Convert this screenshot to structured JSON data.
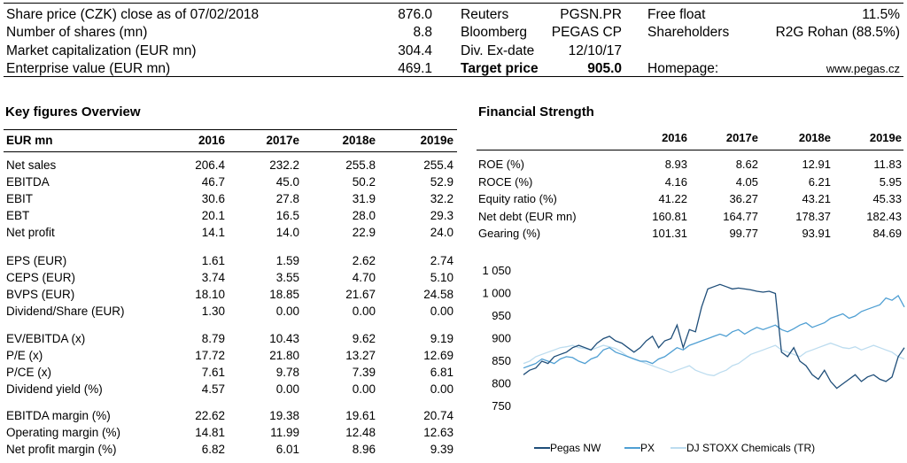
{
  "header": {
    "share_price_label": "Share price (CZK) close as of 07/02/2018",
    "share_price_value": "876.0",
    "shares_label": "Number of shares (mn)",
    "shares_value": "8.8",
    "market_cap_label": "Market capitalization (EUR mn)",
    "market_cap_value": "304.4",
    "ev_label": "Enterprise value (EUR mn)",
    "ev_value": "469.1",
    "reuters_label": "Reuters",
    "reuters_value": "PGSN.PR",
    "bloomberg_label": "Bloomberg",
    "bloomberg_value": "PEGAS CP",
    "divex_label": "Div. Ex-date",
    "divex_value": "12/10/17",
    "target_label": "Target price",
    "target_value": "905.0",
    "freefloat_label": "Free float",
    "freefloat_value": "11.5%",
    "shareholders_label": "Shareholders",
    "shareholders_value": "R2G Rohan (88.5%)",
    "homepage_label": "Homepage:",
    "homepage_value": "www.pegas.cz"
  },
  "key_figures": {
    "title": "Key figures Overview",
    "unit_label": "EUR mn",
    "years": [
      "2016",
      "2017e",
      "2018e",
      "2019e"
    ],
    "rows": [
      {
        "label": "Net sales",
        "v": [
          "206.4",
          "232.2",
          "255.8",
          "255.4"
        ]
      },
      {
        "label": "EBITDA",
        "v": [
          "46.7",
          "45.0",
          "50.2",
          "52.9"
        ]
      },
      {
        "label": "EBIT",
        "v": [
          "30.6",
          "27.8",
          "31.9",
          "32.2"
        ]
      },
      {
        "label": "EBT",
        "v": [
          "20.1",
          "16.5",
          "28.0",
          "29.3"
        ]
      },
      {
        "label": "Net profit",
        "v": [
          "14.1",
          "14.0",
          "22.9",
          "24.0"
        ]
      },
      {
        "label": "EPS (EUR)",
        "v": [
          "1.61",
          "1.59",
          "2.62",
          "2.74"
        ]
      },
      {
        "label": "CEPS (EUR)",
        "v": [
          "3.74",
          "3.55",
          "4.70",
          "5.10"
        ]
      },
      {
        "label": "BVPS (EUR)",
        "v": [
          "18.10",
          "18.85",
          "21.67",
          "24.58"
        ]
      },
      {
        "label": "Dividend/Share (EUR)",
        "v": [
          "1.30",
          "0.00",
          "0.00",
          "0.00"
        ]
      },
      {
        "label": "EV/EBITDA (x)",
        "v": [
          "8.79",
          "10.43",
          "9.62",
          "9.19"
        ]
      },
      {
        "label": "P/E (x)",
        "v": [
          "17.72",
          "21.80",
          "13.27",
          "12.69"
        ]
      },
      {
        "label": "P/CE (x)",
        "v": [
          "7.61",
          "9.78",
          "7.39",
          "6.81"
        ]
      },
      {
        "label": "Dividend yield (%)",
        "v": [
          "4.57",
          "0.00",
          "0.00",
          "0.00"
        ]
      },
      {
        "label": "EBITDA margin (%)",
        "v": [
          "22.62",
          "19.38",
          "19.61",
          "20.74"
        ]
      },
      {
        "label": "Operating margin (%)",
        "v": [
          "14.81",
          "11.99",
          "12.48",
          "12.63"
        ]
      },
      {
        "label": "Net profit margin (%)",
        "v": [
          "6.82",
          "6.01",
          "8.96",
          "9.39"
        ]
      }
    ]
  },
  "financial_strength": {
    "title": "Financial Strength",
    "years": [
      "2016",
      "2017e",
      "2018e",
      "2019e"
    ],
    "rows": [
      {
        "label": "ROE (%)",
        "v": [
          "8.93",
          "8.62",
          "12.91",
          "11.83"
        ]
      },
      {
        "label": "ROCE (%)",
        "v": [
          "4.16",
          "4.05",
          "6.21",
          "5.95"
        ]
      },
      {
        "label": "Equity ratio (%)",
        "v": [
          "41.22",
          "36.27",
          "43.21",
          "45.33"
        ]
      },
      {
        "label": "Net debt (EUR mn)",
        "v": [
          "160.81",
          "164.77",
          "178.37",
          "182.43"
        ]
      },
      {
        "label": "Gearing (%)",
        "v": [
          "101.31",
          "99.77",
          "93.91",
          "84.69"
        ]
      }
    ]
  },
  "chart_data": {
    "type": "line",
    "y_ticks": [
      "1 050",
      "1 000",
      "950",
      "900",
      "850",
      "800",
      "750"
    ],
    "ylim": [
      750,
      1050
    ],
    "legend_position": "bottom",
    "series": [
      {
        "name": "Pegas NW",
        "color": "#1f4e79",
        "values": [
          820,
          830,
          835,
          850,
          845,
          860,
          865,
          870,
          880,
          885,
          880,
          875,
          890,
          900,
          905,
          895,
          890,
          880,
          870,
          880,
          895,
          905,
          880,
          895,
          900,
          930,
          880,
          920,
          915,
          970,
          1010,
          1015,
          1020,
          1015,
          1010,
          1012,
          1010,
          1008,
          1005,
          1003,
          1005,
          1000,
          870,
          860,
          880,
          850,
          840,
          820,
          810,
          830,
          805,
          790,
          800,
          810,
          820,
          805,
          815,
          820,
          810,
          805,
          815,
          860,
          880
        ]
      },
      {
        "name": "PX",
        "color": "#4f9fd3",
        "values": [
          835,
          840,
          845,
          855,
          850,
          845,
          855,
          860,
          858,
          850,
          845,
          855,
          860,
          875,
          880,
          870,
          865,
          860,
          855,
          850,
          850,
          845,
          855,
          860,
          870,
          880,
          875,
          885,
          890,
          895,
          900,
          905,
          910,
          905,
          915,
          920,
          910,
          918,
          925,
          920,
          925,
          930,
          920,
          915,
          922,
          930,
          935,
          925,
          930,
          935,
          945,
          950,
          955,
          945,
          950,
          960,
          965,
          970,
          975,
          990,
          985,
          995,
          970
        ]
      },
      {
        "name": "DJ STOXX Chemicals (TR)",
        "color": "#bcdcef",
        "values": [
          845,
          850,
          860,
          865,
          870,
          875,
          880,
          882,
          885,
          880,
          878,
          875,
          880,
          885,
          882,
          878,
          870,
          860,
          855,
          850,
          845,
          840,
          835,
          830,
          825,
          830,
          835,
          840,
          830,
          825,
          820,
          818,
          825,
          830,
          840,
          845,
          855,
          865,
          870,
          875,
          880,
          885,
          875,
          870,
          865,
          860,
          870,
          875,
          880,
          885,
          890,
          885,
          880,
          878,
          882,
          875,
          880,
          885,
          880,
          875,
          870,
          860,
          855
        ]
      }
    ]
  }
}
